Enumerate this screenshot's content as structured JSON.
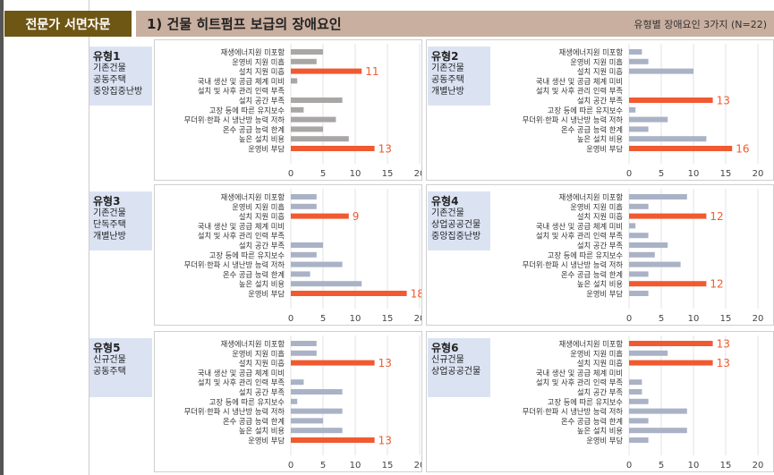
{
  "header": {
    "section": "전문가 서면자문",
    "title": "1) 건물 히트펌프 보급의 장애요인",
    "subtitle": "유형별 장애요인 3가지 (N=22)"
  },
  "colors": {
    "highlight": "#f15a30",
    "gray": "#a9a6a6",
    "bluegray": "#aab2c6"
  },
  "chart_data": {
    "type": "bar",
    "orientation": "horizontal",
    "categories": [
      "재생에너지원 미포함",
      "운영비 지원 미흡",
      "설치 지원 미흡",
      "국내 생산 및 공급 체계 미비",
      "설치 및 사후 관리 인력 부족",
      "설치 공간 부족",
      "고장 등에 따른 유지보수",
      "무더위·한파 시 냉난방 능력 저하",
      "온수 공급 능력 한계",
      "높은 설치 비용",
      "운영비 부담"
    ],
    "xlim": [
      0,
      20
    ],
    "xticks": [
      "0",
      "5",
      "10",
      "15",
      "20"
    ],
    "panels": [
      {
        "type_label": "유형1",
        "desc": [
          "기존건물",
          "공동주택",
          "중앙집중난방"
        ],
        "values": [
          5,
          4,
          11,
          1,
          0,
          8,
          2,
          7,
          5,
          9,
          13
        ],
        "highlight": [
          2,
          10
        ]
      },
      {
        "type_label": "유형2",
        "desc": [
          "기존건물",
          "공동주택",
          "개별난방"
        ],
        "values": [
          2,
          3,
          10,
          0,
          0,
          13,
          1,
          6,
          3,
          12,
          16
        ],
        "highlight": [
          5,
          10
        ]
      },
      {
        "type_label": "유형3",
        "desc": [
          "기존건물",
          "단독주택",
          "개별난방"
        ],
        "values": [
          4,
          4,
          9,
          0,
          0,
          5,
          4,
          8,
          3,
          11,
          18
        ],
        "highlight": [
          2,
          10
        ]
      },
      {
        "type_label": "유형4",
        "desc": [
          "기존건물",
          "상업공공건물",
          "중앙집중난방"
        ],
        "values": [
          9,
          3,
          12,
          1,
          3,
          6,
          4,
          8,
          3,
          12,
          3
        ],
        "highlight": [
          2,
          9
        ]
      },
      {
        "type_label": "유형5",
        "desc": [
          "신규건물",
          "공동주택"
        ],
        "values": [
          4,
          4,
          13,
          0,
          2,
          8,
          1,
          8,
          5,
          8,
          13
        ],
        "highlight": [
          2,
          10
        ]
      },
      {
        "type_label": "유형6",
        "desc": [
          "신규건물",
          "상업공공건물"
        ],
        "values": [
          13,
          6,
          13,
          0,
          2,
          2,
          3,
          9,
          3,
          9,
          3
        ],
        "highlight": [
          0,
          2
        ]
      }
    ]
  }
}
